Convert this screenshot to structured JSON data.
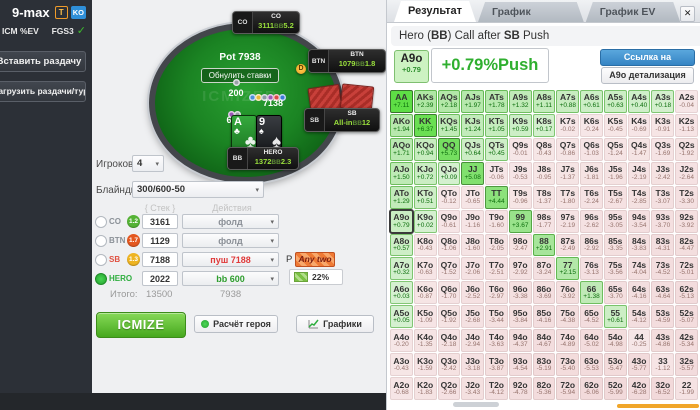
{
  "colors": {
    "positive_green": "#2faf2f",
    "link_blue": "#3584c4",
    "push_red": "#e03a3a",
    "call_green": "#2e9e2e",
    "orange_bar": "#f0a62a"
  },
  "icons": {
    "check": "✓",
    "caret": "▾",
    "close": "✕"
  },
  "sidebar": {
    "title": "9-max",
    "badge_t": "T",
    "badge_ko": "KO",
    "icm_label": "ICM %EV",
    "fgs_label": "FGS3",
    "insert_button": "Вставить раздачу",
    "load_button": "Загрузить раздачи/турнир"
  },
  "table": {
    "pot": "Pot 7938",
    "reset_button": "Обнулить ставки",
    "ante_bet": "200",
    "push_bet": "7138",
    "bb_bet": "600",
    "dealer_label": "D",
    "bb_unit": "BB",
    "watermark": "ICMIZER",
    "seats": {
      "co": {
        "pos": "CO",
        "name": "CO",
        "stack": "3111",
        "bb": "5.2"
      },
      "btn": {
        "pos": "BTN",
        "name": "BTN",
        "stack": "1079",
        "bb": "1.8"
      },
      "sb": {
        "pos": "SB",
        "name": "SB",
        "stack": "All-in",
        "bb": "12"
      },
      "hero": {
        "pos": "BB",
        "name": "HERO",
        "stack": "1372",
        "bb": "2.3"
      }
    },
    "hero_cards": [
      {
        "rank": "A",
        "suit": "♣"
      },
      {
        "rank": "9",
        "suit": "♠"
      }
    ]
  },
  "form": {
    "players_label": "Игроков",
    "players_value": "4",
    "blinds_label": "Блайнды",
    "blinds_value": "300/600-50",
    "stack_header": "{ Стек }",
    "actions_header": "Действия",
    "rows": [
      {
        "pos": "CO",
        "pos_color": "#8a9097",
        "badge": "1.2",
        "badge_color": "#55b335",
        "stack": "3161",
        "action": "фолд",
        "action_color": "#8a8f96"
      },
      {
        "pos": "BTN",
        "pos_color": "#8a9097",
        "badge": "1.7",
        "badge_color": "#e4571f",
        "stack": "1129",
        "action": "фолд",
        "action_color": "#8a8f96"
      },
      {
        "pos": "SB",
        "pos_color": "#e05040",
        "badge": "1.3",
        "badge_color": "#eeb422",
        "stack": "7188",
        "action": "пуш 7188",
        "action_color": "#e03a3a"
      },
      {
        "pos": "HERO",
        "pos_color": "#2fae3f",
        "badge": "",
        "badge_color": "",
        "stack": "2022",
        "action": "bb 600",
        "action_color": "#2e9e2e"
      }
    ],
    "total_label": "Итого:",
    "total_stack": "13500",
    "total_pot": "7938",
    "range_p_label": "Р",
    "any_two_label": "Any two",
    "range_percent": "22%"
  },
  "footer_buttons": {
    "icmize": "ICMIZE",
    "hero_calc": "Расчёт героя",
    "charts": "Графики"
  },
  "result_panel": {
    "tabs": [
      {
        "label": "Результат"
      },
      {
        "label": "График Диапазона"
      },
      {
        "label": "График EV Руки"
      }
    ],
    "title_parts": {
      "p1": "Hero (",
      "b1": "BB",
      "p2": ") Call after ",
      "b2": "SB",
      "p3": " Push"
    },
    "hand": "A9o",
    "hand_ev": "+0.79",
    "big_ev": "+0.79%Push",
    "link_button": "Ссылка на результат",
    "detail_button": "A9o детализация"
  },
  "matrix": {
    "rows": [
      [
        [
          "AA",
          "+7.11"
        ],
        [
          "AKs",
          "+2.39"
        ],
        [
          "AQs",
          "+2.18"
        ],
        [
          "AJs",
          "+1.97"
        ],
        [
          "ATs",
          "+1.78"
        ],
        [
          "A9s",
          "+1.32"
        ],
        [
          "A8s",
          "+1.11"
        ],
        [
          "A7s",
          "+0.88"
        ],
        [
          "A6s",
          "+0.61"
        ],
        [
          "A5s",
          "+0.63"
        ],
        [
          "A4s",
          "+0.40"
        ],
        [
          "A3s",
          "+0.18"
        ],
        [
          "A2s",
          "-0.04"
        ]
      ],
      [
        [
          "AKo",
          "+1.94"
        ],
        [
          "KK",
          "+6.37"
        ],
        [
          "KQs",
          "+1.45"
        ],
        [
          "KJs",
          "+1.24"
        ],
        [
          "KTs",
          "+1.05"
        ],
        [
          "K9s",
          "+0.59"
        ],
        [
          "K8s",
          "+0.17"
        ],
        [
          "K7s",
          "-0.02"
        ],
        [
          "K6s",
          "-0.24"
        ],
        [
          "K5s",
          "-0.45"
        ],
        [
          "K4s",
          "-0.69"
        ],
        [
          "K3s",
          "-0.91"
        ],
        [
          "K2s",
          "-1.13"
        ]
      ],
      [
        [
          "AQo",
          "+1.71"
        ],
        [
          "KQo",
          "+0.94"
        ],
        [
          "QQ",
          "+5.73"
        ],
        [
          "QJs",
          "+0.64"
        ],
        [
          "QTs",
          "+0.45"
        ],
        [
          "Q9s",
          "-0.01"
        ],
        [
          "Q8s",
          "-0.43"
        ],
        [
          "Q7s",
          "-0.86"
        ],
        [
          "Q6s",
          "-1.03"
        ],
        [
          "Q5s",
          "-1.24"
        ],
        [
          "Q4s",
          "-1.47"
        ],
        [
          "Q3s",
          "-1.69"
        ],
        [
          "Q2s",
          "-1.92"
        ]
      ],
      [
        [
          "AJo",
          "+1.50"
        ],
        [
          "KJo",
          "+0.72"
        ],
        [
          "QJo",
          "+0.09"
        ],
        [
          "JJ",
          "+5.08"
        ],
        [
          "JTs",
          "-0.06"
        ],
        [
          "J9s",
          "-0.53"
        ],
        [
          "J8s",
          "-0.95"
        ],
        [
          "J7s",
          "-1.37"
        ],
        [
          "J6s",
          "-1.81"
        ],
        [
          "J5s",
          "-1.96"
        ],
        [
          "J4s",
          "-2.19"
        ],
        [
          "J3s",
          "-2.42"
        ],
        [
          "J2s",
          "-2.64"
        ]
      ],
      [
        [
          "ATo",
          "+1.29"
        ],
        [
          "KTo",
          "+0.51"
        ],
        [
          "QTo",
          "-0.12"
        ],
        [
          "JTo",
          "-0.65"
        ],
        [
          "TT",
          "+4.44"
        ],
        [
          "T9s",
          "-0.96"
        ],
        [
          "T8s",
          "-1.37"
        ],
        [
          "T7s",
          "-1.80"
        ],
        [
          "T6s",
          "-2.24"
        ],
        [
          "T5s",
          "-2.67"
        ],
        [
          "T4s",
          "-2.85"
        ],
        [
          "T3s",
          "-3.07"
        ],
        [
          "T2s",
          "-3.30"
        ]
      ],
      [
        [
          "A9o",
          "+0.79"
        ],
        [
          "K9o",
          "+0.02"
        ],
        [
          "Q9o",
          "-0.61"
        ],
        [
          "J9o",
          "-1.16"
        ],
        [
          "T9o",
          "-1.60"
        ],
        [
          "99",
          "+3.67"
        ],
        [
          "98s",
          "-1.77"
        ],
        [
          "97s",
          "-2.19"
        ],
        [
          "96s",
          "-2.62"
        ],
        [
          "95s",
          "-3.05"
        ],
        [
          "94s",
          "-3.54"
        ],
        [
          "93s",
          "-3.70"
        ],
        [
          "92s",
          "-3.92"
        ]
      ],
      [
        [
          "A8o",
          "+0.57"
        ],
        [
          "K8o",
          "-0.43"
        ],
        [
          "Q8o",
          "-1.06"
        ],
        [
          "J8o",
          "-1.60"
        ],
        [
          "T8o",
          "-2.05"
        ],
        [
          "98o",
          "-2.47"
        ],
        [
          "88",
          "+2.91"
        ],
        [
          "87s",
          "-2.49"
        ],
        [
          "86s",
          "-2.92"
        ],
        [
          "85s",
          "-3.35"
        ],
        [
          "84s",
          "-3.83"
        ],
        [
          "83s",
          "-4.31"
        ],
        [
          "82s",
          "-4.47"
        ]
      ],
      [
        [
          "A7o",
          "+0.32"
        ],
        [
          "K7o",
          "-0.63"
        ],
        [
          "Q7o",
          "-1.52"
        ],
        [
          "J7o",
          "-2.06"
        ],
        [
          "T7o",
          "-2.51"
        ],
        [
          "97o",
          "-2.92"
        ],
        [
          "87o",
          "-3.24"
        ],
        [
          "77",
          "+2.15"
        ],
        [
          "76s",
          "-3.13"
        ],
        [
          "75s",
          "-3.56"
        ],
        [
          "74s",
          "-4.04"
        ],
        [
          "73s",
          "-4.52"
        ],
        [
          "72s",
          "-5.01"
        ]
      ],
      [
        [
          "A6o",
          "+0.03"
        ],
        [
          "K6o",
          "-0.87"
        ],
        [
          "Q6o",
          "-1.70"
        ],
        [
          "J6o",
          "-2.52"
        ],
        [
          "T6o",
          "-2.97"
        ],
        [
          "96o",
          "-3.38"
        ],
        [
          "86o",
          "-3.69"
        ],
        [
          "76o",
          "-3.92"
        ],
        [
          "66",
          "+1.38"
        ],
        [
          "65s",
          "-3.70"
        ],
        [
          "64s",
          "-4.16"
        ],
        [
          "63s",
          "-4.64"
        ],
        [
          "62s",
          "-5.13"
        ]
      ],
      [
        [
          "A5o",
          "+0.05"
        ],
        [
          "K5o",
          "-1.09"
        ],
        [
          "Q5o",
          "-1.92"
        ],
        [
          "J5o",
          "-2.68"
        ],
        [
          "T5o",
          "-3.44"
        ],
        [
          "95o",
          "-3.84"
        ],
        [
          "85o",
          "-4.16"
        ],
        [
          "75o",
          "-4.38"
        ],
        [
          "65o",
          "-4.52"
        ],
        [
          "55",
          "+0.61"
        ],
        [
          "54s",
          "-4.12"
        ],
        [
          "53s",
          "-4.59"
        ],
        [
          "52s",
          "-5.07"
        ]
      ],
      [
        [
          "A4o",
          "-0.20"
        ],
        [
          "K4o",
          "-1.35"
        ],
        [
          "Q4o",
          "-2.18"
        ],
        [
          "J4o",
          "-2.94"
        ],
        [
          "T4o",
          "-3.63"
        ],
        [
          "94o",
          "-4.37"
        ],
        [
          "84o",
          "-4.67"
        ],
        [
          "74o",
          "-4.89"
        ],
        [
          "64o",
          "-5.02"
        ],
        [
          "54o",
          "-4.98"
        ],
        [
          "44",
          "-0.25"
        ],
        [
          "43s",
          "-4.86"
        ],
        [
          "42s",
          "-5.34"
        ]
      ],
      [
        [
          "A3o",
          "-0.43"
        ],
        [
          "K3o",
          "-1.59"
        ],
        [
          "Q3o",
          "-2.42"
        ],
        [
          "J3o",
          "-3.18"
        ],
        [
          "T3o",
          "-3.87"
        ],
        [
          "93o",
          "-4.54"
        ],
        [
          "83o",
          "-5.19"
        ],
        [
          "73o",
          "-5.40"
        ],
        [
          "63o",
          "-5.53"
        ],
        [
          "53o",
          "-5.47"
        ],
        [
          "43o",
          "-5.77"
        ],
        [
          "33",
          "-1.12"
        ],
        [
          "32s",
          "-5.57"
        ]
      ],
      [
        [
          "A2o",
          "-0.68"
        ],
        [
          "K2o",
          "-1.83"
        ],
        [
          "Q2o",
          "-2.66"
        ],
        [
          "J2o",
          "-3.43"
        ],
        [
          "T2o",
          "-4.12"
        ],
        [
          "92o",
          "-4.78"
        ],
        [
          "82o",
          "-5.36"
        ],
        [
          "72o",
          "-5.94"
        ],
        [
          "62o",
          "-6.06"
        ],
        [
          "52o",
          "-5.99"
        ],
        [
          "42o",
          "-6.28"
        ],
        [
          "32o",
          "-6.52"
        ],
        [
          "22",
          "-1.99"
        ]
      ]
    ]
  }
}
